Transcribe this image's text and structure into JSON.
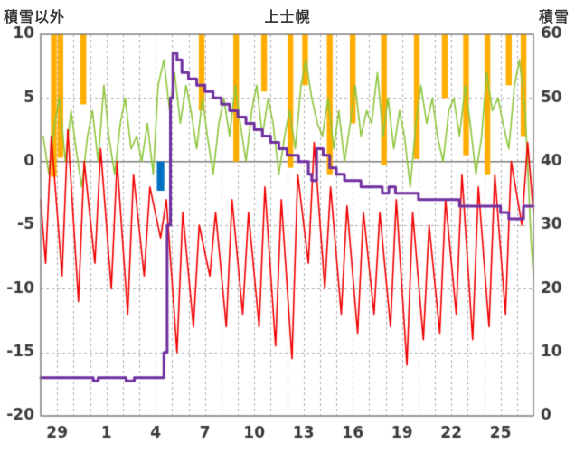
{
  "chart_data": {
    "type": "line",
    "title": "上士幌",
    "colors": {
      "grid": "#b0b0b0",
      "border": "#7f7f7f",
      "zero_line": "#7f7f7f",
      "text": "#3a3a3a",
      "orange_bars": "#ffae00",
      "blue_bar": "#0070c0",
      "green_line": "#8ec63d",
      "red_line": "#f20000",
      "purple_line": "#7030a0"
    },
    "left_axis": {
      "label": "積雪以外",
      "min": -20,
      "max": 10,
      "ticks": [
        10,
        5,
        0,
        -5,
        -10,
        -15,
        -20
      ]
    },
    "right_axis": {
      "label": "積雪",
      "min": 0,
      "max": 60,
      "ticks": [
        60,
        50,
        40,
        30,
        20,
        10,
        0
      ]
    },
    "x_axis": {
      "min": 0,
      "max": 30,
      "day_grid": true,
      "tick_positions": [
        1,
        4,
        7,
        10,
        13,
        16,
        19,
        22,
        25,
        28
      ],
      "tick_labels": [
        "29",
        "1",
        "4",
        "7",
        "10",
        "13",
        "16",
        "19",
        "22",
        "25"
      ]
    },
    "series": [
      {
        "id": "orange-top-bars",
        "type": "top-bars",
        "axis": "left",
        "color": "#ffae00",
        "bar_width_days": 0.35,
        "bars": [
          [
            0.8,
            -1.2
          ],
          [
            1.2,
            0.3
          ],
          [
            2.6,
            4.5
          ],
          [
            9.8,
            4
          ],
          [
            11.9,
            0
          ],
          [
            13.6,
            5.5
          ],
          [
            15.2,
            -0.5
          ],
          [
            16.1,
            6
          ],
          [
            17.6,
            -1
          ],
          [
            19.0,
            3
          ],
          [
            20.9,
            -0.3
          ],
          [
            22.9,
            0.2
          ],
          [
            24.6,
            5
          ],
          [
            25.9,
            0.5
          ],
          [
            27.2,
            -1
          ],
          [
            28.5,
            6
          ],
          [
            29.4,
            2
          ]
        ]
      },
      {
        "id": "blue-block-bar",
        "type": "block-bar",
        "axis": "left",
        "color": "#0070c0",
        "bars": [
          [
            7.3,
            0,
            -2.3,
            0.45
          ]
        ]
      },
      {
        "id": "green-line",
        "type": "line",
        "axis": "left",
        "color": "#8ec63d",
        "width": 1.6,
        "points": [
          [
            0.15,
            2
          ],
          [
            0.5,
            -1
          ],
          [
            0.85,
            3
          ],
          [
            1.15,
            5
          ],
          [
            1.5,
            0
          ],
          [
            1.85,
            4
          ],
          [
            2.15,
            1
          ],
          [
            2.5,
            -2
          ],
          [
            2.85,
            2
          ],
          [
            3.15,
            4
          ],
          [
            3.5,
            0
          ],
          [
            3.85,
            6
          ],
          [
            4.15,
            2
          ],
          [
            4.5,
            -1
          ],
          [
            4.85,
            3
          ],
          [
            5.15,
            5
          ],
          [
            5.5,
            1
          ],
          [
            5.85,
            2
          ],
          [
            6.15,
            0
          ],
          [
            6.5,
            3
          ],
          [
            6.85,
            -1
          ],
          [
            7.15,
            6
          ],
          [
            7.5,
            8
          ],
          [
            7.85,
            4
          ],
          [
            8.15,
            7
          ],
          [
            8.5,
            3
          ],
          [
            8.85,
            6
          ],
          [
            9.15,
            4
          ],
          [
            9.5,
            1
          ],
          [
            9.85,
            5
          ],
          [
            10.15,
            2
          ],
          [
            10.5,
            -1
          ],
          [
            10.85,
            3
          ],
          [
            11.15,
            5
          ],
          [
            11.5,
            2
          ],
          [
            11.85,
            6
          ],
          [
            12.15,
            3
          ],
          [
            12.5,
            0
          ],
          [
            12.85,
            4
          ],
          [
            13.15,
            6
          ],
          [
            13.5,
            2
          ],
          [
            13.85,
            5
          ],
          [
            14.15,
            3
          ],
          [
            14.5,
            -1
          ],
          [
            14.85,
            2
          ],
          [
            15.15,
            4
          ],
          [
            15.5,
            1
          ],
          [
            15.85,
            6
          ],
          [
            16.15,
            8
          ],
          [
            16.5,
            5
          ],
          [
            16.85,
            3
          ],
          [
            17.15,
            2
          ],
          [
            17.5,
            5
          ],
          [
            17.85,
            1
          ],
          [
            18.15,
            4
          ],
          [
            18.5,
            0
          ],
          [
            18.85,
            3
          ],
          [
            19.15,
            6
          ],
          [
            19.5,
            2
          ],
          [
            19.85,
            4
          ],
          [
            20.15,
            3
          ],
          [
            20.5,
            7
          ],
          [
            20.85,
            2
          ],
          [
            21.15,
            5
          ],
          [
            21.5,
            1
          ],
          [
            21.85,
            4
          ],
          [
            22.15,
            2
          ],
          [
            22.5,
            -2
          ],
          [
            22.85,
            3
          ],
          [
            23.15,
            6
          ],
          [
            23.5,
            3
          ],
          [
            23.85,
            5
          ],
          [
            24.15,
            2
          ],
          [
            24.5,
            0
          ],
          [
            24.85,
            4
          ],
          [
            25.15,
            5
          ],
          [
            25.5,
            2
          ],
          [
            25.85,
            6
          ],
          [
            26.15,
            3
          ],
          [
            26.5,
            -1
          ],
          [
            26.85,
            2
          ],
          [
            27.15,
            7
          ],
          [
            27.5,
            4
          ],
          [
            27.85,
            5
          ],
          [
            28.15,
            3
          ],
          [
            28.5,
            1
          ],
          [
            28.85,
            6
          ],
          [
            29.15,
            8
          ],
          [
            29.5,
            4
          ],
          [
            29.85,
            -6
          ],
          [
            30,
            -9
          ]
        ]
      },
      {
        "id": "red-line",
        "type": "line",
        "axis": "left",
        "color": "#f20000",
        "width": 1.6,
        "points": [
          [
            0,
            -3
          ],
          [
            0.3,
            -8
          ],
          [
            0.65,
            2
          ],
          [
            1.3,
            -9
          ],
          [
            1.65,
            2.5
          ],
          [
            2.3,
            -11
          ],
          [
            2.65,
            0
          ],
          [
            3.3,
            -8
          ],
          [
            3.65,
            1
          ],
          [
            4.3,
            -10
          ],
          [
            4.65,
            0
          ],
          [
            5.3,
            -12
          ],
          [
            5.65,
            -1
          ],
          [
            6.3,
            -9
          ],
          [
            6.65,
            -2
          ],
          [
            7.3,
            -6
          ],
          [
            7.65,
            -3
          ],
          [
            8.3,
            -15
          ],
          [
            8.65,
            -4
          ],
          [
            9.3,
            -13
          ],
          [
            9.65,
            -5
          ],
          [
            10.3,
            -9
          ],
          [
            10.65,
            -4
          ],
          [
            11.3,
            -13
          ],
          [
            11.65,
            -3
          ],
          [
            12.3,
            -12
          ],
          [
            12.65,
            -4
          ],
          [
            13.3,
            -13
          ],
          [
            13.65,
            -2
          ],
          [
            14.3,
            -14.5
          ],
          [
            14.65,
            -3
          ],
          [
            15.3,
            -15.5
          ],
          [
            15.65,
            -1
          ],
          [
            16.3,
            -8
          ],
          [
            16.65,
            1.5
          ],
          [
            17.3,
            -10
          ],
          [
            17.65,
            -2
          ],
          [
            18.3,
            -12
          ],
          [
            18.65,
            -3.5
          ],
          [
            19.3,
            -13.5
          ],
          [
            19.65,
            -4
          ],
          [
            20.3,
            -12
          ],
          [
            20.65,
            -4
          ],
          [
            21.3,
            -13
          ],
          [
            21.65,
            -3
          ],
          [
            22.3,
            -16
          ],
          [
            22.65,
            -4
          ],
          [
            23.3,
            -14
          ],
          [
            23.65,
            -5
          ],
          [
            24.3,
            -13.5
          ],
          [
            24.65,
            -3
          ],
          [
            25.3,
            -12
          ],
          [
            25.65,
            -1
          ],
          [
            26.3,
            -14
          ],
          [
            26.65,
            -2
          ],
          [
            27.3,
            -13
          ],
          [
            27.65,
            -1
          ],
          [
            28.3,
            -12
          ],
          [
            28.65,
            0
          ],
          [
            29.3,
            -5
          ],
          [
            29.65,
            1.5
          ],
          [
            30,
            -4
          ]
        ]
      },
      {
        "id": "purple-step-line",
        "type": "line",
        "step": true,
        "axis": "right",
        "color": "#7030a0",
        "width": 3,
        "points": [
          [
            0,
            6
          ],
          [
            3,
            6
          ],
          [
            3.2,
            5.5
          ],
          [
            3.5,
            6
          ],
          [
            5,
            6
          ],
          [
            5.2,
            5.5
          ],
          [
            5.7,
            6
          ],
          [
            7.3,
            6
          ],
          [
            7.5,
            10
          ],
          [
            7.7,
            30
          ],
          [
            7.9,
            50
          ],
          [
            8.05,
            57
          ],
          [
            8.3,
            56
          ],
          [
            8.6,
            54
          ],
          [
            9,
            53
          ],
          [
            9.5,
            52
          ],
          [
            10,
            51
          ],
          [
            10.5,
            50
          ],
          [
            11,
            49
          ],
          [
            11.5,
            48
          ],
          [
            12,
            47
          ],
          [
            12.5,
            46
          ],
          [
            13,
            45
          ],
          [
            13.5,
            44
          ],
          [
            14,
            43
          ],
          [
            14.5,
            42
          ],
          [
            15,
            41
          ],
          [
            15.7,
            40
          ],
          [
            16.3,
            38
          ],
          [
            16.5,
            37
          ],
          [
            16.8,
            42
          ],
          [
            17.2,
            41
          ],
          [
            17.6,
            39
          ],
          [
            18,
            38
          ],
          [
            18.5,
            37
          ],
          [
            19.5,
            36
          ],
          [
            20.8,
            35
          ],
          [
            21.2,
            36
          ],
          [
            21.6,
            35
          ],
          [
            23,
            34
          ],
          [
            25,
            34
          ],
          [
            25.5,
            33
          ],
          [
            27.5,
            33
          ],
          [
            28,
            32
          ],
          [
            28.5,
            31
          ],
          [
            29.2,
            31
          ],
          [
            29.4,
            33
          ],
          [
            30,
            33
          ]
        ]
      }
    ]
  }
}
